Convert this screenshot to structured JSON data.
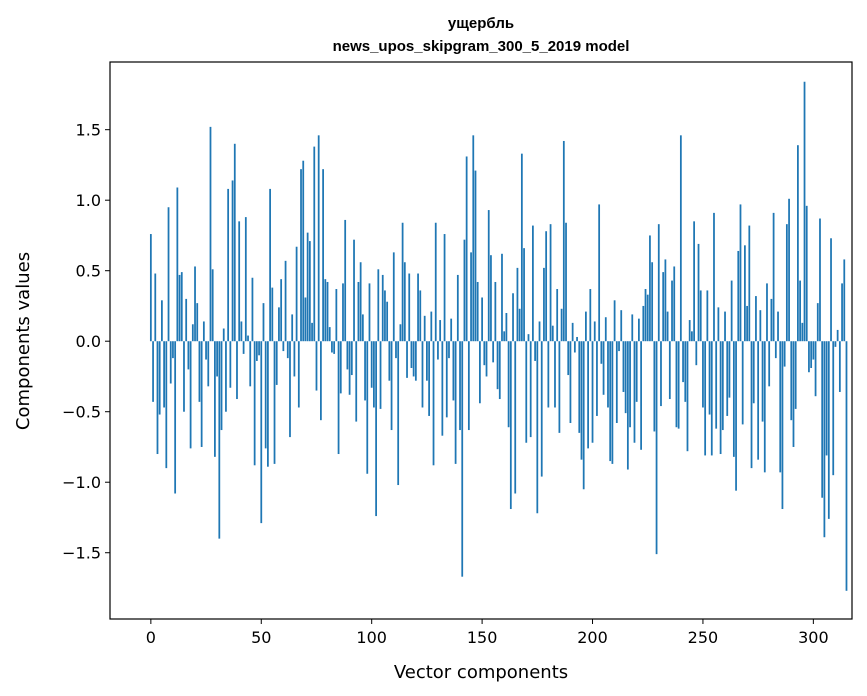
{
  "chart_data": {
    "type": "bar",
    "title": "ущербль",
    "subtitle": "news_upos_skipgram_300_5_2019 model",
    "xlabel": "Vector components",
    "ylabel": "Components values",
    "xlim": [
      -18.5,
      317.5
    ],
    "ylim": [
      -1.97,
      1.98
    ],
    "x_ticks": [
      0,
      50,
      100,
      150,
      200,
      250,
      300
    ],
    "y_ticks": [
      -1.5,
      -1.0,
      -0.5,
      0.0,
      0.5,
      1.0,
      1.5
    ],
    "y_tick_labels": [
      "−1.5",
      "−1.0",
      "−0.5",
      "0.0",
      "0.5",
      "1.0",
      "1.5"
    ],
    "grid": false,
    "bar_color": "#1f77b4",
    "values": [
      0.76,
      -0.43,
      0.48,
      -0.8,
      -0.52,
      0.29,
      -0.47,
      -0.9,
      0.95,
      -0.3,
      -0.12,
      -1.08,
      1.09,
      0.47,
      0.49,
      -0.5,
      0.3,
      -0.2,
      -0.76,
      0.12,
      0.53,
      0.27,
      -0.43,
      -0.75,
      0.14,
      -0.13,
      -0.32,
      1.52,
      0.51,
      -0.82,
      -0.25,
      -1.4,
      -0.63,
      0.09,
      -0.5,
      1.08,
      -0.33,
      1.14,
      1.4,
      -0.41,
      0.85,
      0.14,
      -0.09,
      0.88,
      0.04,
      -0.32,
      0.45,
      -0.88,
      -0.14,
      -0.1,
      -1.29,
      0.27,
      -0.76,
      -0.89,
      1.08,
      0.38,
      -0.87,
      -0.31,
      0.24,
      0.44,
      -0.07,
      0.57,
      -0.12,
      -0.68,
      0.19,
      -0.25,
      0.67,
      -0.47,
      1.22,
      1.28,
      0.31,
      0.77,
      0.71,
      0.13,
      1.38,
      -0.35,
      1.46,
      -0.56,
      1.22,
      0.44,
      0.42,
      0.1,
      -0.08,
      -0.09,
      0.37,
      -0.8,
      -0.37,
      0.41,
      0.86,
      -0.2,
      -0.38,
      -0.24,
      0.72,
      -0.57,
      0.42,
      0.56,
      0.19,
      -0.42,
      -0.94,
      0.41,
      -0.33,
      -0.47,
      -1.24,
      0.51,
      -0.48,
      0.47,
      0.36,
      0.28,
      -0.28,
      -0.63,
      0.63,
      -0.12,
      -1.02,
      0.12,
      0.84,
      0.56,
      -0.26,
      0.48,
      -0.19,
      -0.25,
      -0.28,
      0.48,
      0.36,
      -0.47,
      0.18,
      -0.28,
      -0.53,
      0.21,
      -0.88,
      0.84,
      -0.13,
      0.15,
      -0.67,
      0.76,
      -0.54,
      -0.12,
      0.16,
      -0.42,
      -0.87,
      0.47,
      -0.63,
      -1.67,
      0.72,
      1.31,
      -0.63,
      0.63,
      1.46,
      1.21,
      0.42,
      -0.44,
      0.31,
      -0.17,
      -0.25,
      0.93,
      0.61,
      -0.15,
      0.42,
      -0.34,
      -0.41,
      0.62,
      0.07,
      0.2,
      -0.61,
      -1.19,
      0.34,
      -1.08,
      0.52,
      0.23,
      1.33,
      0.66,
      -0.72,
      0.05,
      -0.68,
      0.82,
      -0.14,
      -1.22,
      0.14,
      -0.96,
      0.52,
      0.78,
      -0.47,
      0.83,
      0.11,
      -0.47,
      0.37,
      -0.65,
      0.23,
      1.42,
      0.84,
      -0.24,
      -0.58,
      0.13,
      -0.08,
      0.03,
      -0.65,
      -0.84,
      -1.05,
      0.21,
      -0.76,
      0.37,
      -0.72,
      0.14,
      -0.53,
      0.97,
      -0.16,
      -0.38,
      0.17,
      -0.47,
      -0.85,
      -0.87,
      0.29,
      -0.58,
      -0.07,
      0.22,
      -0.36,
      -0.51,
      -0.91,
      -0.61,
      0.19,
      -0.72,
      -0.43,
      0.16,
      -0.77,
      0.25,
      0.37,
      0.33,
      0.75,
      0.56,
      -0.64,
      -1.51,
      0.83,
      -0.46,
      0.49,
      0.58,
      0.21,
      -0.41,
      0.43,
      0.53,
      -0.61,
      -0.62,
      1.46,
      -0.29,
      -0.43,
      -0.78,
      0.15,
      0.07,
      0.85,
      -0.17,
      0.69,
      0.36,
      -0.47,
      -0.81,
      0.36,
      -0.52,
      -0.81,
      0.91,
      -0.62,
      0.24,
      -0.8,
      -0.63,
      0.21,
      -0.53,
      -0.4,
      0.43,
      -0.82,
      -1.06,
      0.64,
      0.97,
      -0.59,
      0.68,
      0.25,
      0.82,
      -0.9,
      -0.44,
      0.32,
      -0.84,
      0.22,
      -0.57,
      -0.93,
      0.41,
      -0.32,
      0.3,
      0.91,
      -0.12,
      0.21,
      -0.93,
      -1.19,
      -0.18,
      0.83,
      1.01,
      -0.56,
      -0.75,
      -0.48,
      1.39,
      0.43,
      0.13,
      1.84,
      0.96,
      -0.22,
      -0.19,
      -0.13,
      -0.39,
      0.27,
      0.87,
      -1.11,
      -1.39,
      -0.81,
      -1.26,
      0.73,
      -0.95,
      -0.04,
      0.08,
      -0.36,
      0.41,
      0.58,
      -1.77
    ]
  }
}
